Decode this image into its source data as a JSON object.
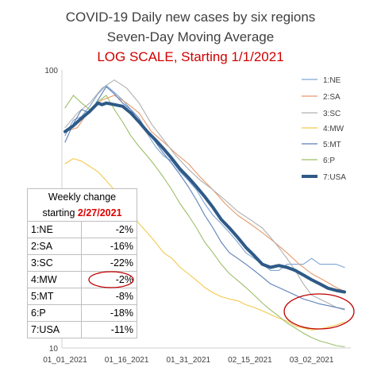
{
  "chart_data": {
    "type": "line",
    "title": "COVID-19 Daily new cases by six regions",
    "subtitle": "Seven-Day Moving Average",
    "note": "LOG SCALE, Starting 1/1/2021",
    "yscale": "log",
    "ylim": [
      10,
      100
    ],
    "y_ticks": [
      "100",
      "10"
    ],
    "x_ticks": [
      "01_01_2021",
      "01_16_2021",
      "01_31_2021",
      "02_15_2021",
      "03_02_2021"
    ],
    "x_tick_days": [
      0,
      15,
      30,
      45,
      60
    ],
    "x_range_days": [
      0,
      68
    ],
    "legend_position": "right",
    "grid": false,
    "series": [
      {
        "name": "1:NE",
        "color": "#7ea6d3",
        "width": 1.1,
        "points": [
          [
            0,
            58
          ],
          [
            2,
            66
          ],
          [
            4,
            68
          ],
          [
            6,
            74
          ],
          [
            8,
            82
          ],
          [
            10,
            88
          ],
          [
            12,
            83
          ],
          [
            14,
            78
          ],
          [
            16,
            72
          ],
          [
            18,
            65
          ],
          [
            20,
            59
          ],
          [
            22,
            53
          ],
          [
            24,
            49
          ],
          [
            26,
            47
          ],
          [
            28,
            43
          ],
          [
            30,
            40
          ],
          [
            32,
            37
          ],
          [
            34,
            33
          ],
          [
            36,
            30
          ],
          [
            38,
            28
          ],
          [
            40,
            26
          ],
          [
            42,
            24
          ],
          [
            44,
            22
          ],
          [
            46,
            21
          ],
          [
            48,
            20
          ],
          [
            50,
            19
          ],
          [
            52,
            19
          ],
          [
            54,
            20
          ],
          [
            56,
            20
          ],
          [
            58,
            20
          ],
          [
            60,
            21
          ],
          [
            62,
            20
          ],
          [
            64,
            20
          ],
          [
            66,
            20
          ],
          [
            68,
            19.5
          ]
        ]
      },
      {
        "name": "2:SA",
        "color": "#e79a6a",
        "width": 1.1,
        "points": [
          [
            0,
            60
          ],
          [
            3,
            62
          ],
          [
            6,
            72
          ],
          [
            9,
            78
          ],
          [
            12,
            81
          ],
          [
            15,
            76
          ],
          [
            18,
            70
          ],
          [
            21,
            60
          ],
          [
            24,
            55
          ],
          [
            27,
            50
          ],
          [
            30,
            46
          ],
          [
            33,
            41
          ],
          [
            36,
            37
          ],
          [
            39,
            33
          ],
          [
            42,
            30
          ],
          [
            45,
            28
          ],
          [
            48,
            26
          ],
          [
            51,
            24
          ],
          [
            54,
            22
          ],
          [
            57,
            20
          ],
          [
            60,
            18.5
          ],
          [
            63,
            17.5
          ],
          [
            66,
            16.5
          ],
          [
            68,
            16
          ]
        ]
      },
      {
        "name": "3:SC",
        "color": "#b0b0b0",
        "width": 1.1,
        "points": [
          [
            0,
            62
          ],
          [
            3,
            70
          ],
          [
            6,
            76
          ],
          [
            9,
            86
          ],
          [
            12,
            92
          ],
          [
            15,
            86
          ],
          [
            18,
            76
          ],
          [
            21,
            64
          ],
          [
            24,
            56
          ],
          [
            27,
            49
          ],
          [
            30,
            44
          ],
          [
            33,
            40
          ],
          [
            36,
            37
          ],
          [
            39,
            34
          ],
          [
            42,
            31
          ],
          [
            45,
            29
          ],
          [
            48,
            27
          ],
          [
            50,
            25
          ],
          [
            52,
            23
          ],
          [
            54,
            21
          ],
          [
            56,
            19
          ],
          [
            58,
            17
          ],
          [
            60,
            15.5
          ],
          [
            62,
            15
          ],
          [
            64,
            14.5
          ],
          [
            66,
            14
          ],
          [
            68,
            13.7
          ]
        ]
      },
      {
        "name": "4:MW",
        "color": "#f2c94c",
        "width": 1.1,
        "points": [
          [
            0,
            46
          ],
          [
            2,
            48
          ],
          [
            4,
            47
          ],
          [
            6,
            45
          ],
          [
            8,
            43
          ],
          [
            10,
            40
          ],
          [
            12,
            37
          ],
          [
            14,
            34
          ],
          [
            16,
            31
          ],
          [
            18,
            28
          ],
          [
            20,
            26
          ],
          [
            22,
            24
          ],
          [
            24,
            22
          ],
          [
            26,
            21
          ],
          [
            28,
            19.5
          ],
          [
            30,
            18.5
          ],
          [
            32,
            17.5
          ],
          [
            34,
            16.5
          ],
          [
            36,
            15.8
          ],
          [
            38,
            15.3
          ],
          [
            40,
            15
          ],
          [
            42,
            14.8
          ],
          [
            44,
            14.3
          ],
          [
            46,
            14
          ],
          [
            48,
            13.6
          ],
          [
            50,
            13.2
          ],
          [
            52,
            12.8
          ],
          [
            54,
            12.5
          ],
          [
            56,
            12
          ],
          [
            58,
            11.8
          ],
          [
            60,
            11.6
          ],
          [
            62,
            11.7
          ],
          [
            64,
            11.9
          ],
          [
            66,
            12.1
          ],
          [
            68,
            12.4
          ]
        ]
      },
      {
        "name": "5:MT",
        "color": "#5b7fb8",
        "width": 1.1,
        "points": [
          [
            0,
            55
          ],
          [
            2,
            64
          ],
          [
            4,
            72
          ],
          [
            6,
            70
          ],
          [
            8,
            78
          ],
          [
            10,
            87
          ],
          [
            12,
            82
          ],
          [
            14,
            76
          ],
          [
            16,
            72
          ],
          [
            18,
            67
          ],
          [
            20,
            60
          ],
          [
            22,
            55
          ],
          [
            24,
            50
          ],
          [
            26,
            46
          ],
          [
            28,
            42
          ],
          [
            30,
            38
          ],
          [
            32,
            34
          ],
          [
            34,
            30
          ],
          [
            36,
            27
          ],
          [
            38,
            24
          ],
          [
            40,
            22
          ],
          [
            42,
            21
          ],
          [
            44,
            20
          ],
          [
            46,
            19
          ],
          [
            48,
            18
          ],
          [
            50,
            17
          ],
          [
            52,
            16.5
          ],
          [
            54,
            16
          ],
          [
            56,
            15.5
          ],
          [
            58,
            15
          ],
          [
            60,
            14.7
          ],
          [
            62,
            14.4
          ],
          [
            64,
            14.2
          ],
          [
            66,
            14
          ],
          [
            68,
            13.8
          ]
        ]
      },
      {
        "name": "6:P",
        "color": "#9cbf6a",
        "width": 1.1,
        "points": [
          [
            0,
            73
          ],
          [
            2,
            81
          ],
          [
            4,
            76
          ],
          [
            6,
            72
          ],
          [
            8,
            77
          ],
          [
            10,
            81
          ],
          [
            12,
            72
          ],
          [
            14,
            65
          ],
          [
            16,
            58
          ],
          [
            18,
            53
          ],
          [
            20,
            49
          ],
          [
            22,
            45
          ],
          [
            24,
            41
          ],
          [
            26,
            37
          ],
          [
            28,
            33
          ],
          [
            30,
            30
          ],
          [
            32,
            27
          ],
          [
            34,
            24
          ],
          [
            36,
            22
          ],
          [
            38,
            20
          ],
          [
            40,
            18.5
          ],
          [
            42,
            17.5
          ],
          [
            44,
            16.5
          ],
          [
            46,
            15.5
          ],
          [
            48,
            14.5
          ],
          [
            50,
            13.7
          ],
          [
            52,
            13
          ],
          [
            54,
            12.3
          ],
          [
            56,
            11.8
          ],
          [
            58,
            11.3
          ],
          [
            60,
            10.9
          ],
          [
            62,
            10.6
          ],
          [
            64,
            10.4
          ],
          [
            66,
            10.2
          ],
          [
            68,
            10.1
          ]
        ]
      },
      {
        "name": "7:USA",
        "color": "#2e5a87",
        "width": 4,
        "points": [
          [
            0,
            60
          ],
          [
            2,
            63
          ],
          [
            4,
            67
          ],
          [
            6,
            71
          ],
          [
            8,
            76
          ],
          [
            9,
            75
          ],
          [
            10,
            76
          ],
          [
            12,
            75
          ],
          [
            14,
            74
          ],
          [
            16,
            70
          ],
          [
            18,
            65
          ],
          [
            20,
            60
          ],
          [
            22,
            56
          ],
          [
            24,
            52
          ],
          [
            26,
            48
          ],
          [
            28,
            44
          ],
          [
            30,
            41
          ],
          [
            32,
            38
          ],
          [
            34,
            35
          ],
          [
            36,
            32
          ],
          [
            38,
            29
          ],
          [
            40,
            27
          ],
          [
            42,
            25
          ],
          [
            44,
            23
          ],
          [
            46,
            21.5
          ],
          [
            48,
            20
          ],
          [
            50,
            19.5
          ],
          [
            52,
            19.8
          ],
          [
            54,
            19.5
          ],
          [
            56,
            19
          ],
          [
            58,
            18.3
          ],
          [
            60,
            17.6
          ],
          [
            62,
            17
          ],
          [
            64,
            16.4
          ],
          [
            66,
            16.1
          ],
          [
            68,
            15.9
          ]
        ]
      }
    ]
  },
  "weekly_table": {
    "header_line1": "Weekly change",
    "header_prefix": "starting ",
    "header_date": "2/27/2021",
    "rows": [
      {
        "label": "1:NE",
        "value": "-2%"
      },
      {
        "label": "2:SA",
        "value": "-16%"
      },
      {
        "label": "3:SC",
        "value": "-22%"
      },
      {
        "label": "4:MW",
        "value": "-2%"
      },
      {
        "label": "5:MT",
        "value": "-8%"
      },
      {
        "label": "6:P",
        "value": "-18%"
      },
      {
        "label": "7:USA",
        "value": "-11%"
      }
    ]
  },
  "annotation_color": "#c00000"
}
